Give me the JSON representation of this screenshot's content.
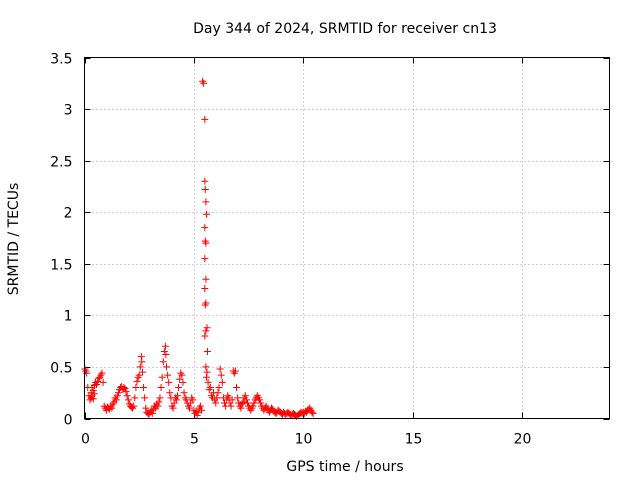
{
  "chart_data": {
    "type": "scatter",
    "title": "Day 344 of 2024, SRMTID for receiver cn13",
    "xlabel": "GPS time / hours",
    "ylabel": "SRMTID / TECUs",
    "xlim": [
      0,
      24
    ],
    "ylim": [
      0,
      3.5
    ],
    "xticks": [
      0,
      5,
      10,
      15,
      20
    ],
    "yticks": [
      0,
      0.5,
      1,
      1.5,
      2,
      2.5,
      3,
      3.5
    ],
    "xtick_labels": [
      "0",
      "5",
      "10",
      "15",
      "20"
    ],
    "ytick_labels": [
      "0",
      "0.5",
      "1",
      "1.5",
      "2",
      "2.5",
      "3",
      "3.5"
    ],
    "grid": true,
    "marker": "plus",
    "color": "#ff0000",
    "series": [
      {
        "points": [
          [
            0.02,
            0.48
          ],
          [
            0.05,
            0.46
          ],
          [
            0.1,
            0.44
          ],
          [
            0.15,
            0.3
          ],
          [
            0.2,
            0.22
          ],
          [
            0.25,
            0.18
          ],
          [
            0.3,
            0.25
          ],
          [
            0.35,
            0.3
          ],
          [
            0.4,
            0.27
          ],
          [
            0.45,
            0.32
          ],
          [
            0.5,
            0.35
          ],
          [
            0.55,
            0.33
          ],
          [
            0.6,
            0.36
          ],
          [
            0.65,
            0.39
          ],
          [
            0.7,
            0.4
          ],
          [
            0.75,
            0.42
          ],
          [
            0.8,
            0.44
          ],
          [
            0.85,
            0.35
          ],
          [
            0.3,
            0.2
          ],
          [
            0.35,
            0.22
          ],
          [
            0.4,
            0.19
          ],
          [
            0.45,
            0.24
          ],
          [
            0.9,
            0.12
          ],
          [
            0.95,
            0.1
          ],
          [
            1.0,
            0.08
          ],
          [
            1.05,
            0.11
          ],
          [
            1.1,
            0.1
          ],
          [
            1.15,
            0.09
          ],
          [
            1.2,
            0.12
          ],
          [
            1.25,
            0.1
          ],
          [
            1.3,
            0.14
          ],
          [
            1.35,
            0.16
          ],
          [
            1.4,
            0.2
          ],
          [
            1.45,
            0.18
          ],
          [
            1.5,
            0.22
          ],
          [
            1.55,
            0.25
          ],
          [
            1.6,
            0.28
          ],
          [
            1.65,
            0.3
          ],
          [
            1.7,
            0.31
          ],
          [
            1.75,
            0.28
          ],
          [
            1.8,
            0.3
          ],
          [
            1.85,
            0.29
          ],
          [
            1.9,
            0.26
          ],
          [
            1.95,
            0.22
          ],
          [
            2.0,
            0.18
          ],
          [
            2.05,
            0.14
          ],
          [
            2.1,
            0.12
          ],
          [
            2.15,
            0.11
          ],
          [
            2.2,
            0.1
          ],
          [
            2.25,
            0.12
          ],
          [
            2.3,
            0.2
          ],
          [
            2.35,
            0.3
          ],
          [
            2.4,
            0.36
          ],
          [
            2.45,
            0.4
          ],
          [
            2.5,
            0.42
          ],
          [
            2.55,
            0.5
          ],
          [
            2.6,
            0.6
          ],
          [
            2.62,
            0.55
          ],
          [
            2.65,
            0.45
          ],
          [
            2.7,
            0.3
          ],
          [
            2.75,
            0.2
          ],
          [
            2.8,
            0.1
          ],
          [
            2.85,
            0.06
          ],
          [
            2.9,
            0.05
          ],
          [
            2.95,
            0.04
          ],
          [
            3.0,
            0.06
          ],
          [
            3.05,
            0.08
          ],
          [
            3.1,
            0.05
          ],
          [
            3.15,
            0.09
          ],
          [
            3.2,
            0.12
          ],
          [
            3.25,
            0.1
          ],
          [
            3.3,
            0.14
          ],
          [
            3.35,
            0.12
          ],
          [
            3.4,
            0.16
          ],
          [
            3.45,
            0.2
          ],
          [
            3.5,
            0.3
          ],
          [
            3.55,
            0.4
          ],
          [
            3.6,
            0.55
          ],
          [
            3.65,
            0.65
          ],
          [
            3.7,
            0.7
          ],
          [
            3.72,
            0.62
          ],
          [
            3.75,
            0.5
          ],
          [
            3.8,
            0.42
          ],
          [
            3.85,
            0.35
          ],
          [
            3.9,
            0.25
          ],
          [
            3.95,
            0.2
          ],
          [
            4.0,
            0.12
          ],
          [
            4.05,
            0.1
          ],
          [
            4.1,
            0.15
          ],
          [
            4.15,
            0.2
          ],
          [
            4.2,
            0.18
          ],
          [
            4.25,
            0.22
          ],
          [
            4.3,
            0.3
          ],
          [
            4.35,
            0.38
          ],
          [
            4.4,
            0.44
          ],
          [
            4.45,
            0.42
          ],
          [
            4.5,
            0.35
          ],
          [
            4.55,
            0.25
          ],
          [
            4.6,
            0.2
          ],
          [
            4.65,
            0.18
          ],
          [
            4.7,
            0.15
          ],
          [
            4.75,
            0.12
          ],
          [
            4.8,
            0.1
          ],
          [
            4.85,
            0.15
          ],
          [
            4.9,
            0.2
          ],
          [
            4.95,
            0.18
          ],
          [
            5.0,
            0.08
          ],
          [
            5.05,
            0.05
          ],
          [
            5.1,
            0.07
          ],
          [
            5.15,
            0.03
          ],
          [
            5.2,
            0.06
          ],
          [
            5.25,
            0.1
          ],
          [
            5.3,
            0.12
          ],
          [
            5.35,
            0.08
          ],
          [
            5.4,
            3.27
          ],
          [
            5.45,
            3.25
          ],
          [
            5.5,
            2.9
          ],
          [
            5.5,
            2.3
          ],
          [
            5.52,
            2.22
          ],
          [
            5.55,
            2.1
          ],
          [
            5.58,
            1.98
          ],
          [
            5.5,
            1.85
          ],
          [
            5.52,
            1.72
          ],
          [
            5.55,
            1.7
          ],
          [
            5.5,
            1.55
          ],
          [
            5.55,
            1.35
          ],
          [
            5.5,
            1.26
          ],
          [
            5.52,
            1.1
          ],
          [
            5.55,
            1.12
          ],
          [
            5.5,
            0.8
          ],
          [
            5.55,
            0.85
          ],
          [
            5.6,
            0.88
          ],
          [
            5.62,
            0.65
          ],
          [
            5.55,
            0.5
          ],
          [
            5.6,
            0.45
          ],
          [
            5.58,
            0.4
          ],
          [
            5.65,
            0.35
          ],
          [
            5.7,
            0.28
          ],
          [
            5.75,
            0.3
          ],
          [
            5.8,
            0.22
          ],
          [
            5.85,
            0.2
          ],
          [
            5.9,
            0.25
          ],
          [
            5.95,
            0.18
          ],
          [
            6.0,
            0.15
          ],
          [
            6.05,
            0.2
          ],
          [
            6.1,
            0.25
          ],
          [
            6.15,
            0.3
          ],
          [
            6.2,
            0.48
          ],
          [
            6.25,
            0.42
          ],
          [
            6.3,
            0.35
          ],
          [
            6.35,
            0.2
          ],
          [
            6.4,
            0.15
          ],
          [
            6.45,
            0.12
          ],
          [
            6.5,
            0.18
          ],
          [
            6.55,
            0.22
          ],
          [
            6.6,
            0.2
          ],
          [
            6.65,
            0.15
          ],
          [
            6.7,
            0.12
          ],
          [
            6.75,
            0.18
          ],
          [
            6.8,
            0.46
          ],
          [
            6.85,
            0.44
          ],
          [
            6.9,
            0.46
          ],
          [
            6.95,
            0.3
          ],
          [
            7.0,
            0.2
          ],
          [
            7.05,
            0.15
          ],
          [
            7.1,
            0.12
          ],
          [
            7.15,
            0.1
          ],
          [
            7.2,
            0.14
          ],
          [
            7.25,
            0.16
          ],
          [
            7.3,
            0.2
          ],
          [
            7.35,
            0.22
          ],
          [
            7.4,
            0.18
          ],
          [
            7.45,
            0.15
          ],
          [
            7.5,
            0.12
          ],
          [
            7.55,
            0.1
          ],
          [
            7.6,
            0.08
          ],
          [
            7.65,
            0.1
          ],
          [
            7.7,
            0.12
          ],
          [
            7.75,
            0.15
          ],
          [
            7.8,
            0.18
          ],
          [
            7.85,
            0.2
          ],
          [
            7.9,
            0.22
          ],
          [
            7.95,
            0.2
          ],
          [
            8.0,
            0.18
          ],
          [
            8.05,
            0.15
          ],
          [
            8.1,
            0.12
          ],
          [
            8.15,
            0.1
          ],
          [
            8.2,
            0.08
          ],
          [
            8.25,
            0.1
          ],
          [
            8.3,
            0.12
          ],
          [
            8.35,
            0.1
          ],
          [
            8.4,
            0.08
          ],
          [
            8.45,
            0.06
          ],
          [
            8.5,
            0.08
          ],
          [
            8.55,
            0.1
          ],
          [
            8.6,
            0.09
          ],
          [
            8.65,
            0.07
          ],
          [
            8.7,
            0.06
          ],
          [
            8.75,
            0.05
          ],
          [
            8.8,
            0.06
          ],
          [
            8.85,
            0.08
          ],
          [
            8.9,
            0.07
          ],
          [
            8.95,
            0.06
          ],
          [
            9.0,
            0.05
          ],
          [
            9.05,
            0.04
          ],
          [
            9.1,
            0.06
          ],
          [
            9.15,
            0.05
          ],
          [
            9.2,
            0.04
          ],
          [
            9.25,
            0.05
          ],
          [
            9.3,
            0.06
          ],
          [
            9.35,
            0.05
          ],
          [
            9.4,
            0.04
          ],
          [
            9.45,
            0.03
          ],
          [
            9.5,
            0.04
          ],
          [
            9.55,
            0.05
          ],
          [
            9.6,
            0.04
          ],
          [
            9.65,
            0.03
          ],
          [
            9.7,
            0.02
          ],
          [
            9.75,
            0.03
          ],
          [
            9.8,
            0.04
          ],
          [
            9.85,
            0.05
          ],
          [
            9.9,
            0.06
          ],
          [
            9.95,
            0.05
          ],
          [
            10.0,
            0.06
          ],
          [
            10.05,
            0.05
          ],
          [
            10.1,
            0.07
          ],
          [
            10.15,
            0.06
          ],
          [
            10.2,
            0.08
          ],
          [
            10.25,
            0.09
          ],
          [
            10.3,
            0.1
          ],
          [
            10.35,
            0.08
          ],
          [
            10.4,
            0.06
          ],
          [
            10.45,
            0.05
          ]
        ]
      }
    ]
  }
}
